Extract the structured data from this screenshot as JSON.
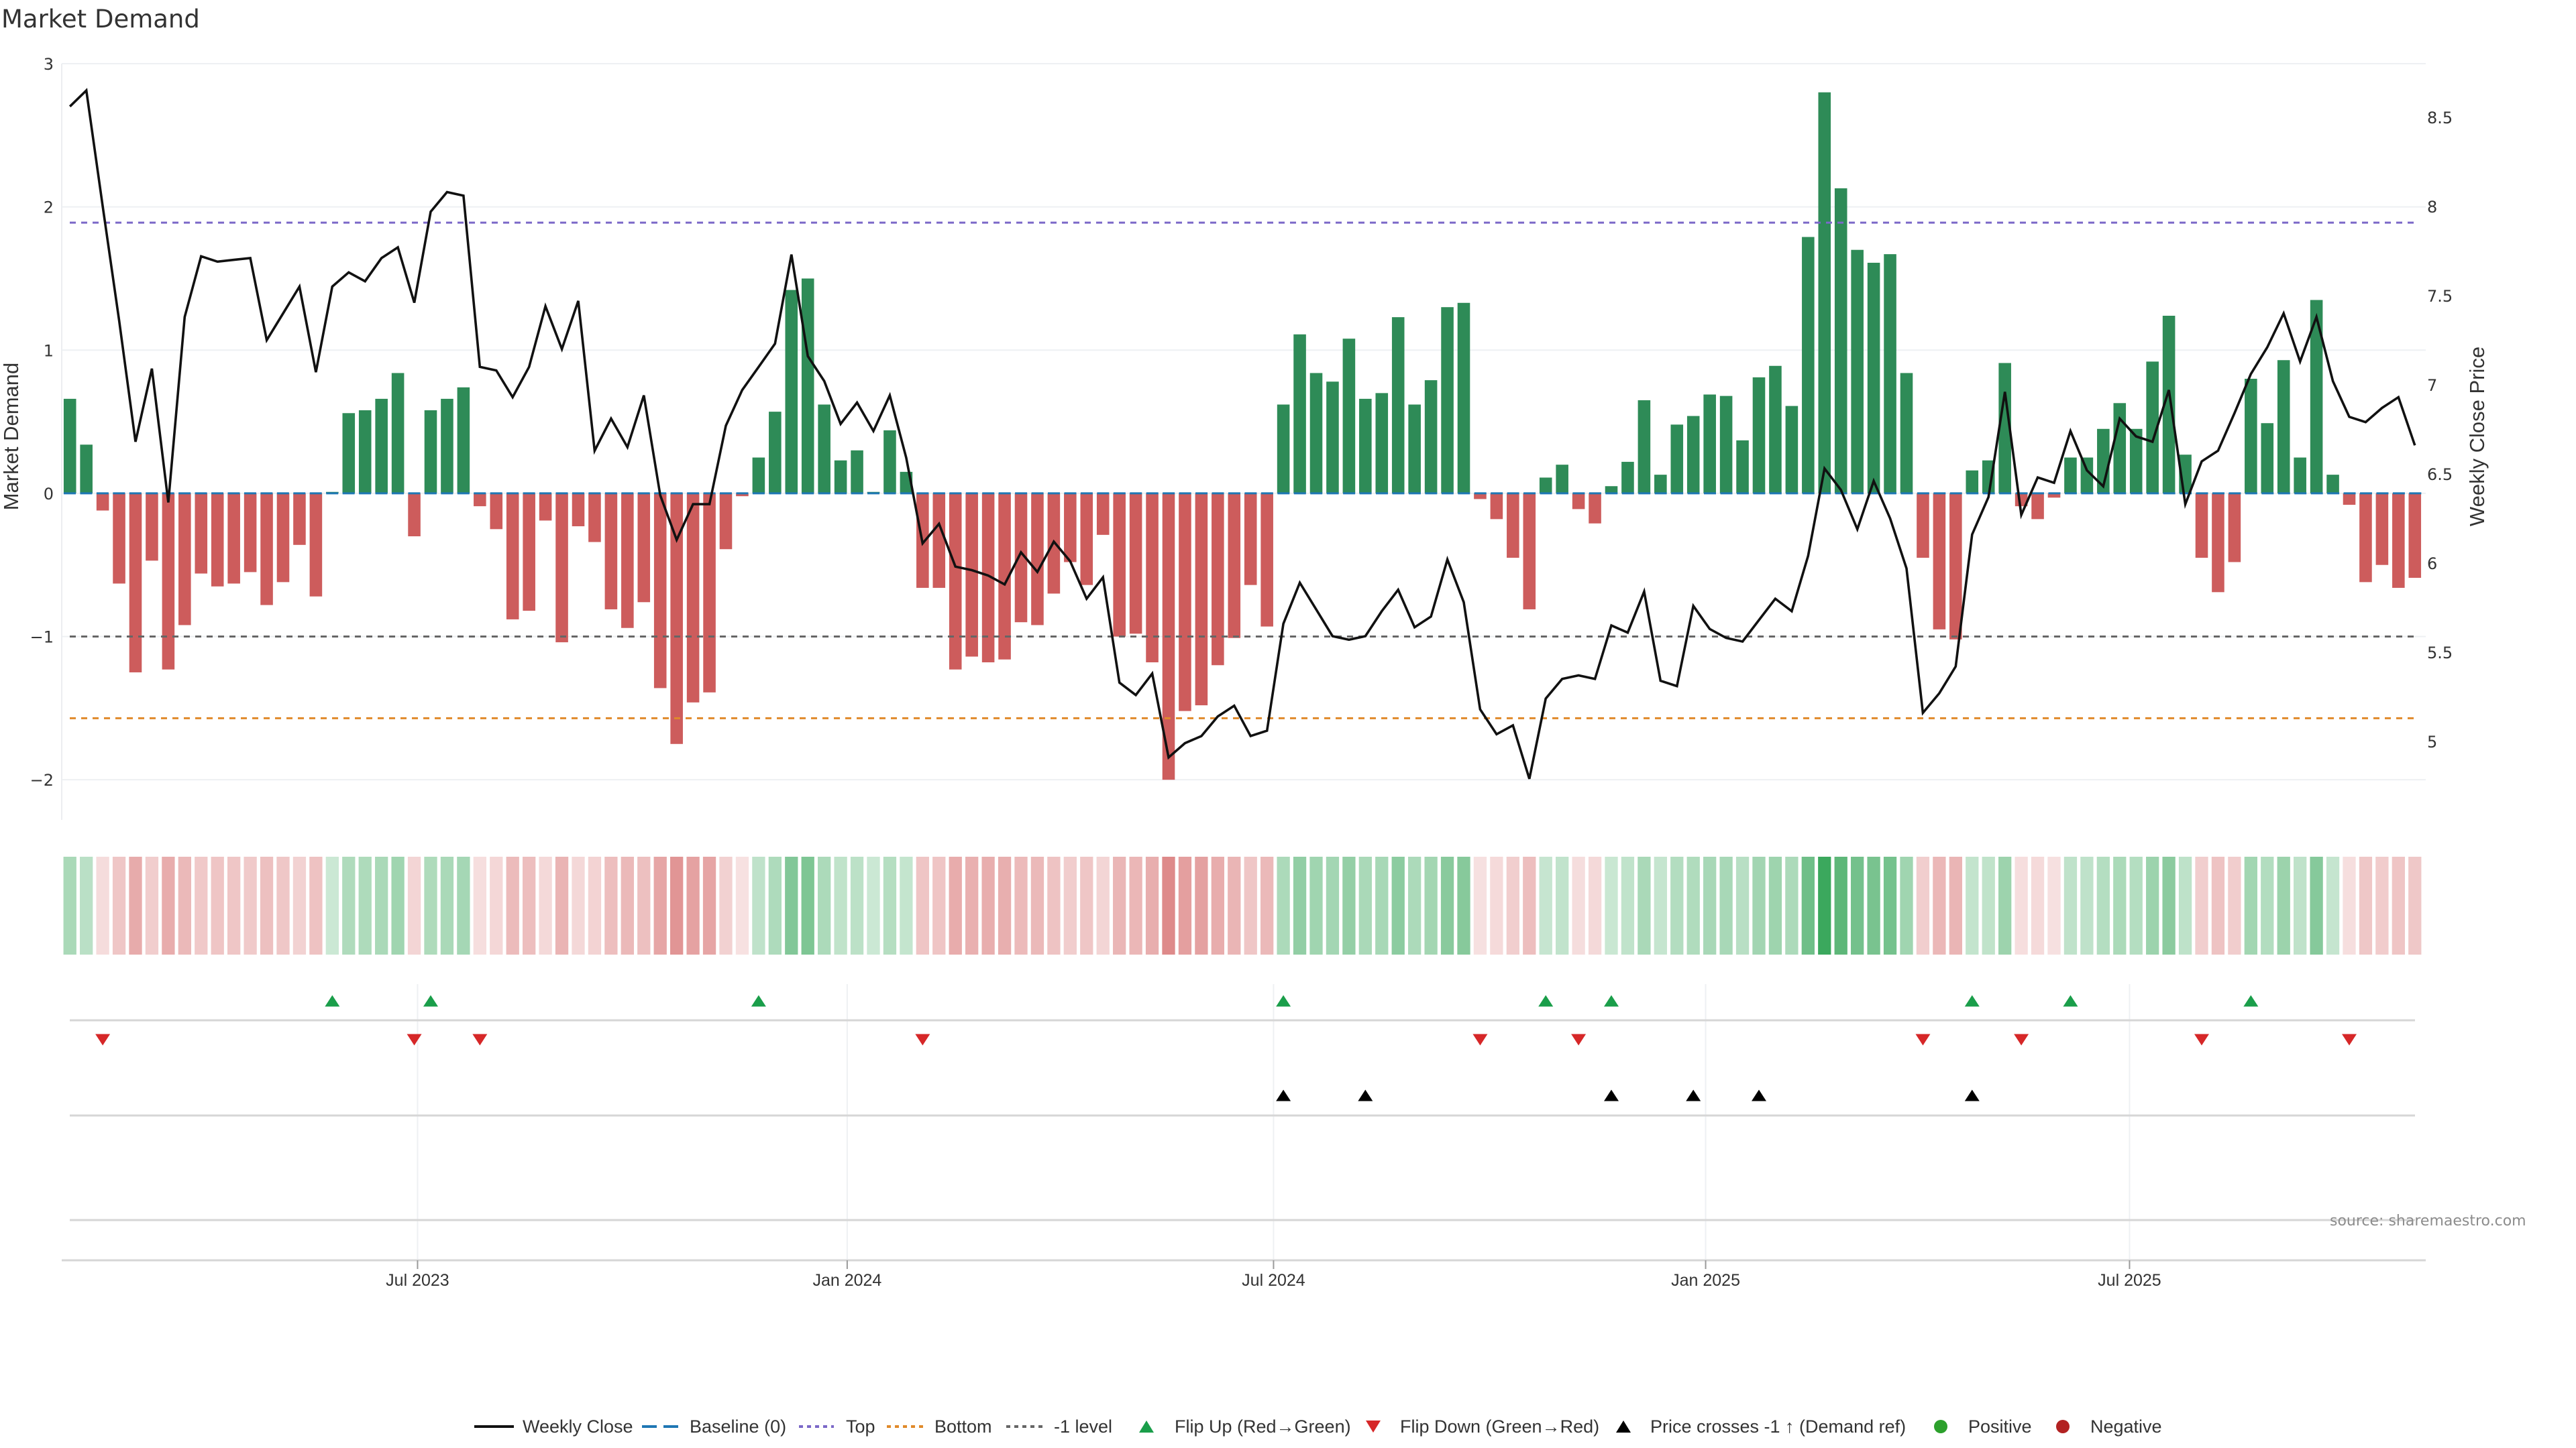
{
  "chart_data": {
    "type": "bar",
    "title": "Market Demand",
    "ylabel": "Market Demand",
    "ylabel_right": "Weekly Close Price",
    "xlabel": "",
    "ylim": [
      -2.28,
      3.0
    ],
    "ylim_right": [
      4.56,
      8.8
    ],
    "grid": true,
    "legend_position": "bottom",
    "source": "source: sharemaestro.com",
    "yticks": [
      {
        "value": 3,
        "label": "3"
      },
      {
        "value": 2,
        "label": "2"
      },
      {
        "value": 1,
        "label": "1"
      },
      {
        "value": 0,
        "label": "0"
      },
      {
        "value": -1,
        "label": "−1"
      },
      {
        "value": -2,
        "label": "−2"
      }
    ],
    "yticks_right": [
      {
        "value": 8.5,
        "label": "8.5"
      },
      {
        "value": 8,
        "label": "8"
      },
      {
        "value": 7.5,
        "label": "7.5"
      },
      {
        "value": 7,
        "label": "7"
      },
      {
        "value": 6.5,
        "label": "6.5"
      },
      {
        "value": 6,
        "label": "6"
      },
      {
        "value": 5.5,
        "label": "5.5"
      },
      {
        "value": 5,
        "label": "5"
      }
    ],
    "xticks": [
      {
        "week_index": 21.2,
        "label": "Jul 2023"
      },
      {
        "week_index": 47.4,
        "label": "Jan 2024"
      },
      {
        "week_index": 73.4,
        "label": "Jul 2024"
      },
      {
        "week_index": 99.75,
        "label": "Jan 2025"
      },
      {
        "week_index": 125.6,
        "label": "Jul 2025"
      }
    ],
    "reference_lines": {
      "baseline": 0,
      "top": 1.89,
      "bottom": -1.57,
      "minus_one": -1
    },
    "series": [
      {
        "name": "Market Demand",
        "values": [
          0.66,
          0.34,
          -0.12,
          -0.63,
          -1.25,
          -0.47,
          -1.23,
          -0.92,
          -0.56,
          -0.65,
          -0.63,
          -0.55,
          -0.78,
          -0.62,
          -0.36,
          -0.72,
          0.01,
          0.56,
          0.58,
          0.66,
          0.84,
          -0.3,
          0.58,
          0.66,
          0.74,
          -0.09,
          -0.25,
          -0.88,
          -0.82,
          -0.19,
          -1.04,
          -0.23,
          -0.34,
          -0.81,
          -0.94,
          -0.76,
          -1.36,
          -1.75,
          -1.46,
          -1.39,
          -0.39,
          -0.02,
          0.25,
          0.57,
          1.42,
          1.5,
          0.62,
          0.23,
          0.3,
          0.01,
          0.44,
          0.15,
          -0.66,
          -0.66,
          -1.23,
          -1.14,
          -1.18,
          -1.16,
          -0.9,
          -0.92,
          -0.7,
          -0.48,
          -0.64,
          -0.29,
          -1.0,
          -0.98,
          -1.18,
          -2.0,
          -1.52,
          -1.48,
          -1.2,
          -1.01,
          -0.64,
          -0.93,
          0.62,
          1.11,
          0.84,
          0.78,
          1.08,
          0.66,
          0.7,
          1.23,
          0.62,
          0.79,
          1.3,
          1.33,
          -0.04,
          -0.18,
          -0.45,
          -0.81,
          0.11,
          0.2,
          -0.11,
          -0.21,
          0.05,
          0.22,
          0.65,
          0.13,
          0.48,
          0.54,
          0.69,
          0.68,
          0.37,
          0.81,
          0.89,
          0.61,
          1.79,
          2.8,
          2.13,
          1.7,
          1.61,
          1.67,
          0.84,
          -0.45,
          -0.95,
          -1.02,
          0.16,
          0.23,
          0.91,
          -0.09,
          -0.18,
          -0.03,
          0.25,
          0.25,
          0.45,
          0.63,
          0.45,
          0.92,
          1.24,
          0.27,
          -0.45,
          -0.69,
          -0.48,
          0.8,
          0.49,
          0.93,
          0.25,
          1.35,
          0.13,
          -0.08,
          -0.62,
          -0.5,
          -0.66,
          -0.59
        ]
      },
      {
        "name": "Weekly Close",
        "values": [
          8.56,
          8.65,
          8.0,
          7.36,
          6.68,
          7.09,
          6.34,
          7.38,
          7.72,
          7.69,
          7.7,
          7.71,
          7.25,
          7.4,
          7.55,
          7.07,
          7.55,
          7.63,
          7.58,
          7.71,
          7.77,
          7.46,
          7.97,
          8.08,
          8.06,
          7.1,
          7.08,
          6.93,
          7.1,
          7.44,
          7.2,
          7.47,
          6.63,
          6.81,
          6.65,
          6.94,
          6.38,
          6.13,
          6.33,
          6.33,
          6.77,
          6.97,
          7.1,
          7.23,
          7.73,
          7.16,
          7.02,
          6.78,
          6.9,
          6.74,
          6.94,
          6.59,
          6.11,
          6.22,
          5.98,
          5.96,
          5.93,
          5.88,
          6.06,
          5.95,
          6.12,
          6.01,
          5.8,
          5.92,
          5.33,
          5.26,
          5.38,
          4.91,
          4.99,
          5.03,
          5.14,
          5.2,
          5.03,
          5.06,
          5.66,
          5.89,
          5.74,
          5.59,
          5.57,
          5.59,
          5.73,
          5.85,
          5.64,
          5.7,
          6.02,
          5.78,
          5.18,
          5.04,
          5.09,
          4.79,
          5.24,
          5.35,
          5.37,
          5.35,
          5.65,
          5.61,
          5.84,
          5.34,
          5.31,
          5.76,
          5.63,
          5.58,
          5.56,
          5.68,
          5.8,
          5.73,
          6.04,
          6.53,
          6.41,
          6.19,
          6.46,
          6.25,
          5.97,
          5.16,
          5.27,
          5.42,
          6.16,
          6.37,
          6.96,
          6.27,
          6.48,
          6.45,
          6.74,
          6.52,
          6.43,
          6.81,
          6.71,
          6.68,
          6.97,
          6.33,
          6.57,
          6.63,
          6.84,
          7.06,
          7.21,
          7.4,
          7.13,
          7.38,
          7.02,
          6.82,
          6.79,
          6.87,
          6.93,
          6.66
        ]
      }
    ],
    "flip_up_indices": [
      16,
      22,
      42,
      74,
      90,
      94,
      116,
      122,
      133
    ],
    "flip_down_indices": [
      2,
      21,
      25,
      52,
      86,
      92,
      113,
      119,
      130,
      139
    ],
    "price_cross_indices": [
      74,
      79,
      94,
      99,
      103,
      116
    ],
    "colors": {
      "positive_bar": "#2e8b57",
      "negative_bar": "#cd5c5c",
      "price_line": "#111111",
      "baseline": "#1f77b4",
      "top": "#7b68c8",
      "bottom": "#e08a2a",
      "minus_one": "#666666",
      "flip_up": "#1a9e4a",
      "flip_down": "#d62728",
      "price_cross": "#000000",
      "positive_dot": "#2ca02c",
      "negative_dot": "#b22222",
      "heat_green": "#31a354",
      "heat_red": "#c83c3c"
    },
    "legend": [
      {
        "label": "Weekly Close",
        "symbol": "solid-line"
      },
      {
        "label": "Baseline (0)",
        "symbol": "dashed-line"
      },
      {
        "label": "Top",
        "symbol": "dotted-line"
      },
      {
        "label": "Bottom",
        "symbol": "dotted-line"
      },
      {
        "label": "-1 level",
        "symbol": "dotted-line"
      },
      {
        "label": "Flip Up (Red→Green)",
        "symbol": "triangle-up"
      },
      {
        "label": "Flip Down (Green→Red)",
        "symbol": "triangle-down"
      },
      {
        "label": "Price crosses -1 ↑ (Demand ref)",
        "symbol": "triangle-up"
      },
      {
        "label": "Positive",
        "symbol": "circle"
      },
      {
        "label": "Negative",
        "symbol": "circle"
      }
    ]
  }
}
